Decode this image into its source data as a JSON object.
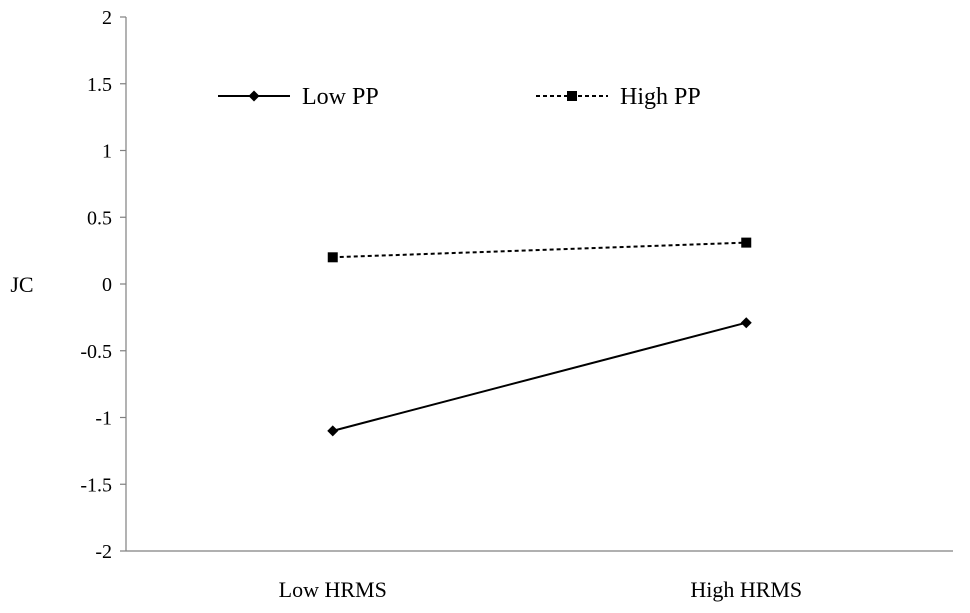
{
  "chart_data": {
    "type": "line",
    "title": "",
    "xlabel": "",
    "ylabel": "JC",
    "ylim": [
      -2,
      2
    ],
    "yticks": [
      "2",
      "1.5",
      "1",
      "0.5",
      "0",
      "-0.5",
      "-1",
      "-1.5",
      "-2"
    ],
    "categories": [
      "Low HRMS",
      "High HRMS"
    ],
    "legend_position": "top",
    "grid": false,
    "series": [
      {
        "name": "Low PP",
        "values": [
          -1.1,
          -0.29
        ],
        "line_style": "solid",
        "marker": "diamond",
        "color": "#000000"
      },
      {
        "name": "High PP",
        "values": [
          0.2,
          0.31
        ],
        "line_style": "dashed",
        "marker": "square",
        "color": "#000000"
      }
    ]
  }
}
